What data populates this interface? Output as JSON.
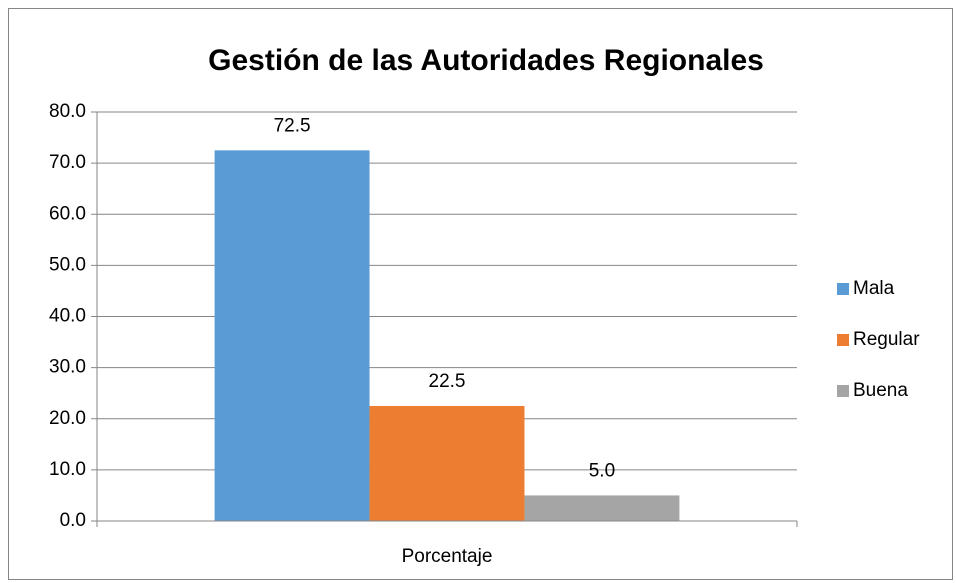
{
  "chart_data": {
    "type": "bar",
    "title": "Gestión de las Autoridades Regionales",
    "categories": [
      "Porcentaje"
    ],
    "series": [
      {
        "name": "Mala",
        "color": "#5b9bd5",
        "values": [
          72.5
        ]
      },
      {
        "name": "Regular",
        "color": "#ed7d31",
        "values": [
          22.5
        ]
      },
      {
        "name": "Buena",
        "color": "#a5a5a5",
        "values": [
          5
        ],
        "value_labels": [
          "5.0"
        ]
      }
    ],
    "ylim": [
      0,
      80
    ],
    "yticks": [
      {
        "value": 0,
        "label": "0.0"
      },
      {
        "value": 10,
        "label": "10.0"
      },
      {
        "value": 20,
        "label": "20.0"
      },
      {
        "value": 30,
        "label": "30.0"
      },
      {
        "value": 40,
        "label": "40.0"
      },
      {
        "value": 50,
        "label": "50.0"
      },
      {
        "value": 60,
        "label": "60.0"
      },
      {
        "value": 70,
        "label": "70.0"
      },
      {
        "value": 80,
        "label": "80.0"
      }
    ],
    "grid": true,
    "legend": "right"
  }
}
